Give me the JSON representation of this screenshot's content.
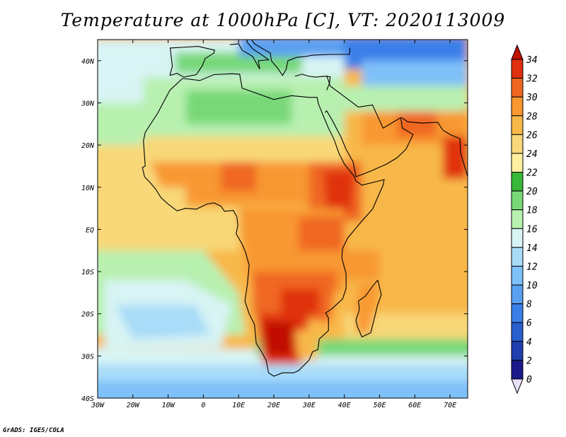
{
  "title": "Temperature at 1000hPa [C], VT: 2020113009",
  "footer": "GrADS: IGES/COLA",
  "map": {
    "lon_ticks": [
      "30W",
      "20W",
      "10W",
      "0",
      "10E",
      "20E",
      "30E",
      "40E",
      "50E",
      "60E",
      "70E"
    ],
    "lat_ticks": [
      "40N",
      "30N",
      "20N",
      "10N",
      "EQ",
      "10S",
      "20S",
      "30S",
      "40S"
    ]
  },
  "colorbar": {
    "levels": [
      "0",
      "2",
      "4",
      "6",
      "8",
      "10",
      "12",
      "14",
      "16",
      "18",
      "20",
      "22",
      "24",
      "26",
      "28",
      "30",
      "32",
      "34"
    ],
    "colors": [
      "#e8e0f8",
      "#1a1a8a",
      "#1f3fb0",
      "#2a5fd0",
      "#3a80e8",
      "#5aa0f0",
      "#7ec0f8",
      "#a8dcf8",
      "#d8f4f4",
      "#b8f0b0",
      "#78d878",
      "#38b838",
      "#fff0a0",
      "#f8d878",
      "#f8b848",
      "#f89830",
      "#f06820",
      "#e03010",
      "#c01000"
    ]
  },
  "chart_data": {
    "type": "heatmap",
    "title": "Temperature at 1000hPa [C], VT: 2020113009",
    "x_ticks": [
      "30W",
      "20W",
      "10W",
      "0",
      "10E",
      "20E",
      "30E",
      "40E",
      "50E",
      "60E",
      "70E"
    ],
    "y_ticks": [
      "40N",
      "30N",
      "20N",
      "10N",
      "EQ",
      "10S",
      "20S",
      "30S",
      "40S"
    ],
    "xlim": [
      -30,
      75
    ],
    "ylim": [
      -40,
      45
    ],
    "color_levels": [
      0,
      2,
      4,
      6,
      8,
      10,
      12,
      14,
      16,
      18,
      20,
      22,
      24,
      26,
      28,
      30,
      32,
      34
    ],
    "unit": "C"
  }
}
